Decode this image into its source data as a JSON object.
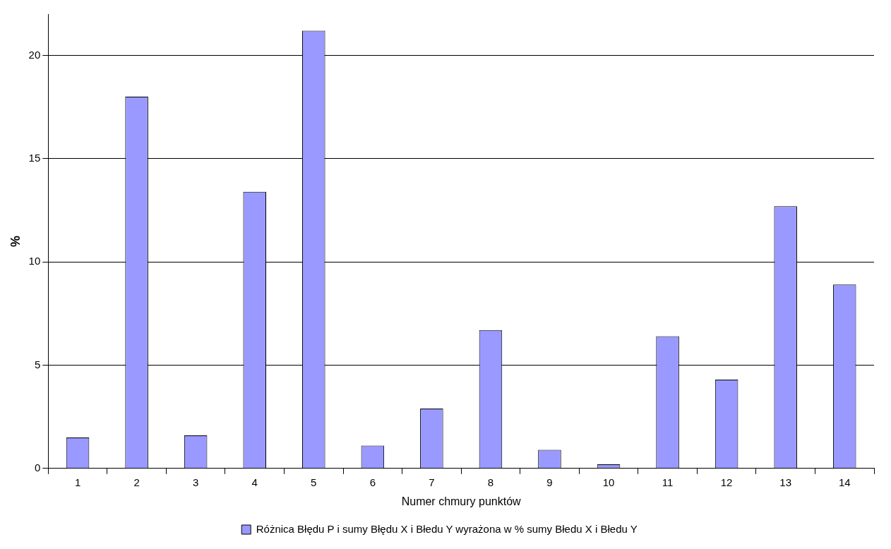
{
  "chart_data": {
    "type": "bar",
    "xlabel": "Numer chmury punktów",
    "ylabel": "%",
    "categories": [
      "1",
      "2",
      "3",
      "4",
      "5",
      "6",
      "7",
      "8",
      "9",
      "10",
      "11",
      "12",
      "13",
      "14"
    ],
    "series": [
      {
        "name": "Różnica Błędu P i sumy Błędu X i Błedu Y wyrażona w % sumy Błedu X i Błedu Y",
        "color": "#9999ff",
        "values": [
          1.5,
          18.0,
          1.6,
          13.4,
          21.2,
          1.1,
          2.9,
          6.7,
          0.9,
          0.2,
          6.4,
          4.3,
          12.7,
          8.9
        ]
      }
    ],
    "ylim": [
      0,
      22
    ],
    "yticks": [
      0,
      5,
      10,
      15,
      20
    ],
    "grid": "y",
    "legend": "bottom"
  }
}
